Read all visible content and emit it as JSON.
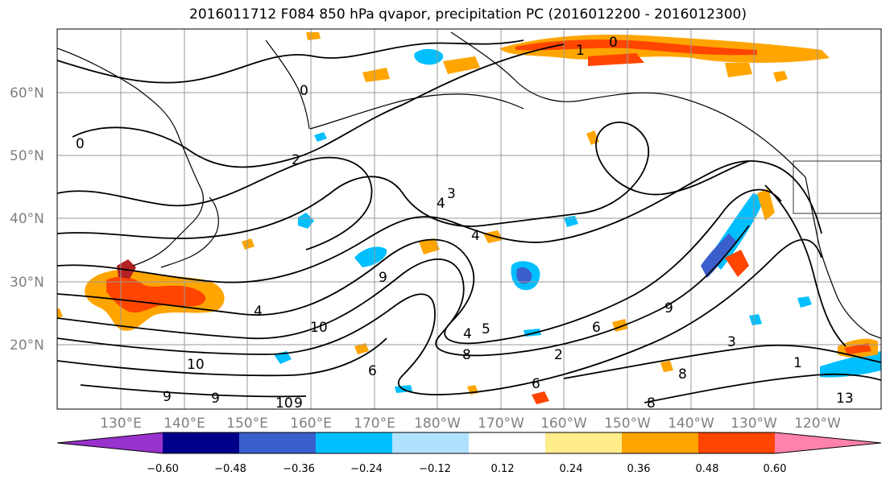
{
  "title": "2016011712 F084 850 hPa qvapor, precipitation PC (2016012200 - 2016012300)",
  "lat_labels": [
    "60°N",
    "50°N",
    "40°N",
    "30°N",
    "20°N"
  ],
  "lon_labels": [
    "130°E",
    "140°E",
    "150°E",
    "160°E",
    "170°E",
    "180°W",
    "170°W",
    "160°W",
    "150°W",
    "140°W",
    "130°W",
    "120°W"
  ],
  "colorbar": {
    "ticks": [
      "−0.60",
      "−0.48",
      "−0.36",
      "−0.24",
      "−0.12",
      "0.12",
      "0.24",
      "0.36",
      "0.48",
      "0.60"
    ],
    "colors": [
      "#9932cc",
      "#00008b",
      "#3a5fcd",
      "#00bfff",
      "#b0e2ff",
      "#ffffff",
      "#ffec8b",
      "#ffa500",
      "#ff4500",
      "#b22222",
      "#ff82ab"
    ]
  },
  "contour_labels": [
    "0",
    "0",
    "0",
    "1",
    "2",
    "3",
    "4",
    "4",
    "4",
    "5",
    "6",
    "6",
    "6",
    "8",
    "8",
    "8",
    "9",
    "9",
    "9",
    "9",
    "10",
    "10",
    "10",
    "13",
    "1",
    "9",
    "3",
    "4",
    "2"
  ],
  "colors": {
    "coastline": "#000000",
    "grid": "#999999"
  }
}
